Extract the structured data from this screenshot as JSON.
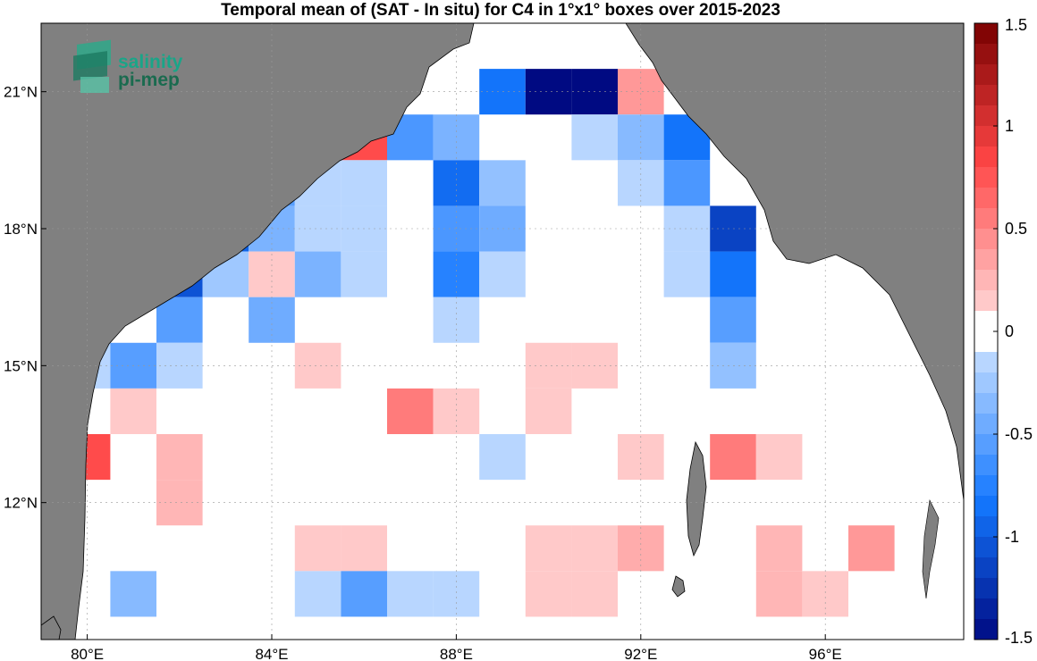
{
  "title": "Temporal mean of (SAT - In situ) for C4 in 1°x1° boxes over 2015-2023",
  "logo": {
    "line1": "salinity",
    "line2": "pi-mep"
  },
  "chart_data": {
    "type": "heatmap",
    "lon_range": [
      79,
      99
    ],
    "lat_range": [
      9,
      22.5
    ],
    "x_ticks": [
      {
        "value": 80,
        "label": "80°E"
      },
      {
        "value": 84,
        "label": "84°E"
      },
      {
        "value": 88,
        "label": "88°E"
      },
      {
        "value": 92,
        "label": "92°E"
      },
      {
        "value": 96,
        "label": "96°E"
      }
    ],
    "y_ticks": [
      {
        "value": 12,
        "label": "12°N"
      },
      {
        "value": 15,
        "label": "15°N"
      },
      {
        "value": 18,
        "label": "18°N"
      },
      {
        "value": 21,
        "label": "21°N"
      }
    ],
    "colorbar": {
      "range": [
        -1.5,
        1.5
      ],
      "ticks": [
        {
          "value": 1.5,
          "label": "1.5"
        },
        {
          "value": 1,
          "label": "1"
        },
        {
          "value": 0.5,
          "label": "0.5"
        },
        {
          "value": 0,
          "label": "0"
        },
        {
          "value": -0.5,
          "label": "-0.5"
        },
        {
          "value": -1,
          "label": "-1"
        },
        {
          "value": -1.5,
          "label": "-1.5"
        }
      ]
    },
    "cells": [
      {
        "lon": 89,
        "lat": 21,
        "value": -0.85
      },
      {
        "lon": 90,
        "lat": 21,
        "value": -1.5
      },
      {
        "lon": 91,
        "lat": 21,
        "value": -1.5
      },
      {
        "lon": 92,
        "lat": 21,
        "value": 0.4
      },
      {
        "lon": 86,
        "lat": 20,
        "value": 0.8
      },
      {
        "lon": 87,
        "lat": 20,
        "value": -0.6
      },
      {
        "lon": 88,
        "lat": 20,
        "value": -0.4
      },
      {
        "lon": 91,
        "lat": 20,
        "value": -0.15
      },
      {
        "lon": 92,
        "lat": 20,
        "value": -0.35
      },
      {
        "lon": 93,
        "lat": 20,
        "value": -0.85
      },
      {
        "lon": 84,
        "lat": 19,
        "value": -0.55
      },
      {
        "lon": 85,
        "lat": 19,
        "value": -0.15
      },
      {
        "lon": 86,
        "lat": 19,
        "value": -0.15
      },
      {
        "lon": 88,
        "lat": 19,
        "value": -0.9
      },
      {
        "lon": 89,
        "lat": 19,
        "value": -0.3
      },
      {
        "lon": 92,
        "lat": 19,
        "value": -0.15
      },
      {
        "lon": 93,
        "lat": 19,
        "value": -0.6
      },
      {
        "lon": 83,
        "lat": 18,
        "value": -0.95
      },
      {
        "lon": 84,
        "lat": 18,
        "value": -0.4
      },
      {
        "lon": 85,
        "lat": 18,
        "value": -0.15
      },
      {
        "lon": 86,
        "lat": 18,
        "value": -0.15
      },
      {
        "lon": 88,
        "lat": 18,
        "value": -0.6
      },
      {
        "lon": 89,
        "lat": 18,
        "value": -0.45
      },
      {
        "lon": 93,
        "lat": 18,
        "value": -0.15
      },
      {
        "lon": 94,
        "lat": 18,
        "value": -1.15
      },
      {
        "lon": 82,
        "lat": 17,
        "value": -1.05
      },
      {
        "lon": 83,
        "lat": 17,
        "value": -0.25
      },
      {
        "lon": 84,
        "lat": 17,
        "value": 0.15
      },
      {
        "lon": 85,
        "lat": 17,
        "value": -0.4
      },
      {
        "lon": 86,
        "lat": 17,
        "value": -0.15
      },
      {
        "lon": 88,
        "lat": 17,
        "value": -0.75
      },
      {
        "lon": 89,
        "lat": 17,
        "value": -0.15
      },
      {
        "lon": 93,
        "lat": 17,
        "value": -0.15
      },
      {
        "lon": 94,
        "lat": 17,
        "value": -0.85
      },
      {
        "lon": 82,
        "lat": 16,
        "value": -0.55
      },
      {
        "lon": 84,
        "lat": 16,
        "value": -0.45
      },
      {
        "lon": 88,
        "lat": 16,
        "value": -0.15
      },
      {
        "lon": 94,
        "lat": 16,
        "value": -0.55
      },
      {
        "lon": 80,
        "lat": 15,
        "value": -0.15
      },
      {
        "lon": 81,
        "lat": 15,
        "value": -0.55
      },
      {
        "lon": 82,
        "lat": 15,
        "value": -0.15
      },
      {
        "lon": 85,
        "lat": 15,
        "value": 0.15
      },
      {
        "lon": 90,
        "lat": 15,
        "value": 0.15
      },
      {
        "lon": 91,
        "lat": 15,
        "value": 0.15
      },
      {
        "lon": 94,
        "lat": 15,
        "value": -0.3
      },
      {
        "lon": 81,
        "lat": 14,
        "value": 0.15
      },
      {
        "lon": 87,
        "lat": 14,
        "value": 0.55
      },
      {
        "lon": 88,
        "lat": 14,
        "value": 0.15
      },
      {
        "lon": 90,
        "lat": 14,
        "value": 0.15
      },
      {
        "lon": 80,
        "lat": 13,
        "value": 0.8
      },
      {
        "lon": 82,
        "lat": 13,
        "value": 0.25
      },
      {
        "lon": 89,
        "lat": 13,
        "value": -0.15
      },
      {
        "lon": 92,
        "lat": 13,
        "value": 0.15
      },
      {
        "lon": 94,
        "lat": 13,
        "value": 0.55
      },
      {
        "lon": 95,
        "lat": 13,
        "value": 0.15
      },
      {
        "lon": 82,
        "lat": 12,
        "value": 0.25
      },
      {
        "lon": 85,
        "lat": 11,
        "value": 0.15
      },
      {
        "lon": 86,
        "lat": 11,
        "value": 0.15
      },
      {
        "lon": 90,
        "lat": 11,
        "value": 0.15
      },
      {
        "lon": 91,
        "lat": 11,
        "value": 0.15
      },
      {
        "lon": 92,
        "lat": 11,
        "value": 0.3
      },
      {
        "lon": 95,
        "lat": 11,
        "value": 0.25
      },
      {
        "lon": 97,
        "lat": 11,
        "value": 0.4
      },
      {
        "lon": 81,
        "lat": 10,
        "value": -0.35
      },
      {
        "lon": 85,
        "lat": 10,
        "value": -0.15
      },
      {
        "lon": 86,
        "lat": 10,
        "value": -0.55
      },
      {
        "lon": 87,
        "lat": 10,
        "value": -0.15
      },
      {
        "lon": 88,
        "lat": 10,
        "value": -0.15
      },
      {
        "lon": 90,
        "lat": 10,
        "value": 0.15
      },
      {
        "lon": 91,
        "lat": 10,
        "value": 0.15
      },
      {
        "lon": 95,
        "lat": 10,
        "value": 0.25
      },
      {
        "lon": 96,
        "lat": 10,
        "value": 0.15
      }
    ]
  },
  "colors": {
    "land": "#808080",
    "ocean": "#ffffff",
    "coast": "#000000"
  }
}
